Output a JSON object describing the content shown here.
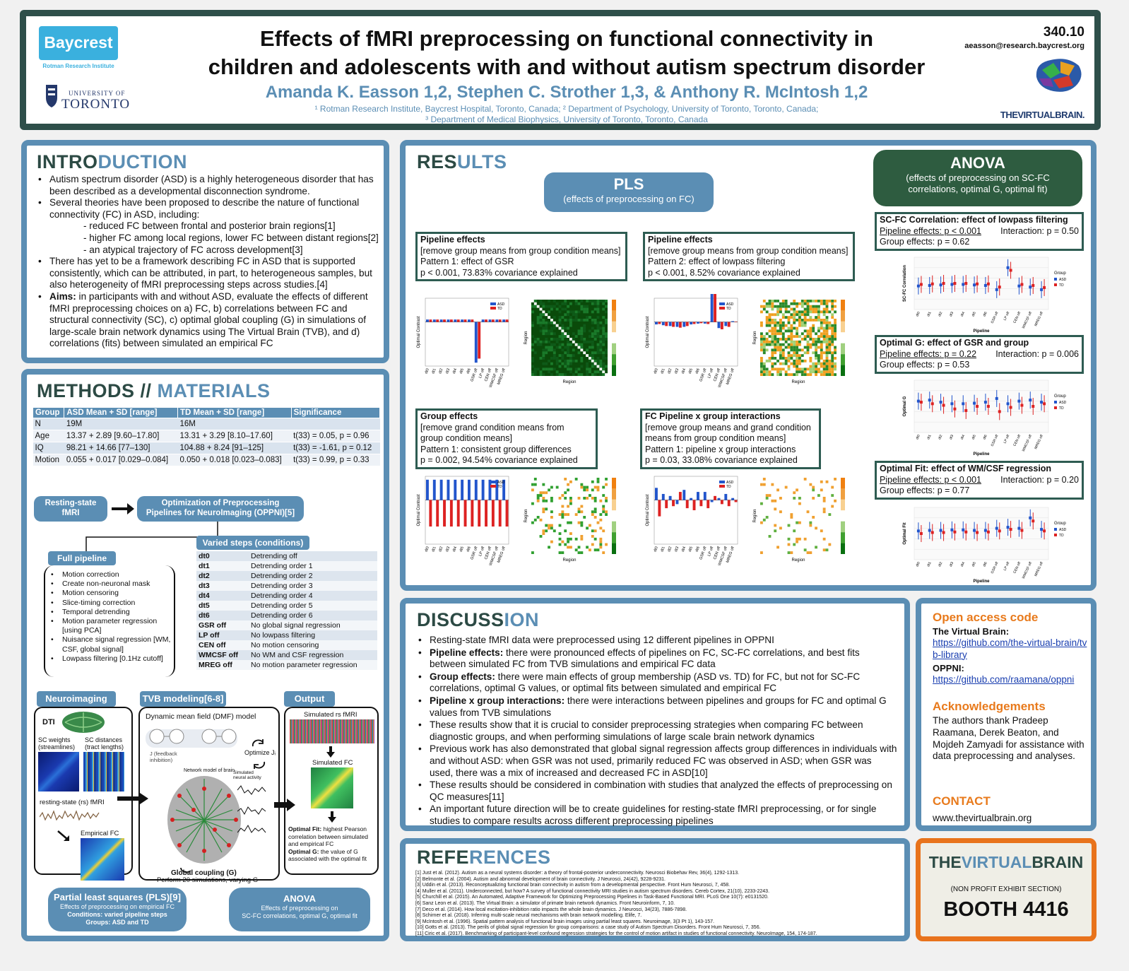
{
  "header": {
    "title_line1": "Effects of fMRI preprocessing on functional connectivity in",
    "title_line2": "children and adolescents with and without autism spectrum disorder",
    "authors": "Amanda K. Easson 1,2, Stephen C. Strother 1,3, & Anthony R. McIntosh 1,2",
    "affil1": "¹ Rotman Research Institute, Baycrest Hospital, Toronto, Canada; ² Department of Psychology, University of Toronto, Toronto, Canada;",
    "affil2": "³ Department of Medical Biophysics, University of Toronto, Toronto, Canada",
    "poster_number": "340.10",
    "email": "aeasson@research.baycrest.org",
    "baycrest": "Baycrest",
    "rotman": "Rotman Research Institute",
    "uoft_top": "UNIVERSITY OF",
    "uoft_bottom": "TORONTO",
    "tvb": "THEVIRTUALBRAIN."
  },
  "intro": {
    "h_a": "INTRO",
    "h_b": "DUCTION",
    "p1": "Autism spectrum disorder (ASD) is a highly heterogeneous disorder that has been described as a developmental disconnection syndrome.",
    "p2": "Several theories have been proposed to describe the nature of functional connectivity (FC) in ASD, including:",
    "s1": "- reduced FC between frontal and posterior brain regions[1]",
    "s2": "- higher FC among local regions, lower FC between distant regions[2]",
    "s3": "- an atypical trajectory of FC across development[3]",
    "p3": "There has yet to be a framework describing FC in ASD that is supported consistently, which can be attributed, in part, to heterogeneous samples, but also heterogeneity of fMRI preprocessing steps across studies.[4]",
    "aims_label": "Aims:",
    "aims": " in participants with and without ASD, evaluate the effects of different fMRI preprocessing choices on a) FC, b) correlations between FC and structural connectivity (SC), c) optimal global coupling (G) in simulations of large-scale brain network dynamics using The Virtual Brain (TVB), and d) correlations (fits) between simulated an empirical FC"
  },
  "methods": {
    "h_a": "METHODS //",
    "h_b": " MATERIALS",
    "table_head": [
      "Group",
      "ASD Mean + SD [range]",
      "TD Mean + SD [range]",
      "Significance"
    ],
    "rows": [
      [
        "N",
        "19M",
        "16M",
        ""
      ],
      [
        "Age",
        "13.37 + 2.89 [9.60–17.80]",
        "13.31 + 3.29 [8.10–17.60]",
        "t(33) = 0.05, p = 0.96"
      ],
      [
        "IQ",
        "98.21 + 14.66 [77–130]",
        "104.88 + 8.24 [91–125]",
        "t(33) = -1.61, p = 0.12"
      ],
      [
        "Motion",
        "0.055 + 0.017 [0.029–0.084]",
        "0.050 + 0.018 [0.023–0.083]",
        "t(33) = 0.99, p = 0.33"
      ]
    ],
    "rs_fmri": "Resting-state fMRI",
    "oppni": "Optimization of Preprocessing Pipelines for NeuroImaging (OPPNI)[5]",
    "full_pipeline": "Full pipeline",
    "pipeline_steps": [
      "Motion correction",
      "Create non-neuronal mask",
      "Motion censoring",
      "Slice-timing correction",
      "Temporal detrending",
      "Motion parameter regression [using PCA]",
      "Nuisance signal regression [WM, CSF, global signal]",
      "Lowpass filtering [0.1Hz cutoff]"
    ],
    "varied_steps": "Varied steps (conditions)",
    "steps": [
      [
        "dt0",
        "Detrending off"
      ],
      [
        "dt1",
        "Detrending order 1"
      ],
      [
        "dt2",
        "Detrending order 2"
      ],
      [
        "dt3",
        "Detrending order 3"
      ],
      [
        "dt4",
        "Detrending order 4"
      ],
      [
        "dt5",
        "Detrending order 5"
      ],
      [
        "dt6",
        "Detrending order 6"
      ],
      [
        "GSR off",
        "No global signal regression"
      ],
      [
        "LP off",
        "No lowpass filtering"
      ],
      [
        "CEN off",
        "No motion censoring"
      ],
      [
        "WMCSF off",
        "No WM and CSF regression"
      ],
      [
        "MREG off",
        "No motion parameter regression"
      ]
    ],
    "neuroimaging": "Neuroimaging",
    "tvb_modeling": "TVB modeling[6-8]",
    "output": "Output",
    "dti": "DTI",
    "sc_weights": "SC weights (streamlines)",
    "sc_dist": "SC distances (tract lengths)",
    "rs_label": "resting-state (rs) fMRI",
    "emp_fc": "Empirical FC",
    "dmf": "Dynamic mean field (DMF) model",
    "jfb": "J (feedback inhibition)",
    "opt_j": "Optimize Jᵢ",
    "net_model": "Network model of brain",
    "sim_activity": "Simulated neural activity",
    "global_coupling": "Global coupling (G)",
    "perform20": "Perform 20 simulations, varying G",
    "sim_rs": "Simulated rs fMRI",
    "sim_fc": "Simulated FC",
    "optfit_label": "Optimal Fit:",
    "optfit": " highest Pearson correlation between simulated and empirical FC",
    "optg_label": "Optimal G:",
    "optg": " the value of G associated with the optimal fit",
    "pls_title": "Partial least squares (PLS)[9]",
    "pls_l1": "Effects of preprocessing on empirical FC",
    "pls_l2": "Conditions: varied pipeline steps",
    "pls_l3": "Groups: ASD and TD",
    "anova_title": "ANOVA",
    "anova_l1": "Effects of preprocessing on",
    "anova_l2": "SC-FC correlations, optimal G, optimal fit"
  },
  "results": {
    "h_a": "RES",
    "h_b": "ULTS",
    "pls_title": "PLS",
    "pls_sub": "(effects of preprocessing on FC)",
    "anova_title": "ANOVA",
    "anova_sub": "(effects of preprocessing on SC-FC correlations, optimal G, optimal fit)",
    "box1": [
      "Pipeline effects",
      "[remove group means from group condition means]",
      "Pattern 1: effect of GSR",
      "p < 0.001, 73.83% covariance explained"
    ],
    "box2": [
      "Pipeline effects",
      "[remove group means from group condition means]",
      "Pattern 2: effect of lowpass filtering",
      "p < 0.001, 8.52% covariance explained"
    ],
    "box3": [
      "Group effects",
      "[remove grand condition means from",
      "group condition means]",
      "Pattern 1: consistent group differences",
      "p = 0.002, 94.54% covariance explained"
    ],
    "box4": [
      "FC Pipeline x group interactions",
      "[remove group means and grand condition",
      "means from group condition means]",
      "Pattern 1: pipeline x group interactions",
      "p = 0.03, 33.08% covariance explained"
    ],
    "a1": [
      "SC-FC Correlation: effect of lowpass filtering",
      "Pipeline effects: p < 0.001",
      "Interaction: p = 0.50",
      "Group effects: p = 0.62"
    ],
    "a2": [
      "Optimal G: effect of GSR and group",
      "Pipeline effects: p = 0.22",
      "Interaction: p = 0.006",
      "Group effects: p = 0.53"
    ],
    "a3": [
      "Optimal Fit: effect of WM/CSF regression",
      "Pipeline effects: p < 0.001",
      "Interaction: p = 0.20",
      "Group effects: p = 0.77"
    ],
    "conditions": [
      "dt0",
      "dt1",
      "dt2",
      "dt3",
      "dt4",
      "dt5",
      "dt6",
      "GSR off",
      "LP off",
      "CEN off",
      "WMCSF off",
      "MREG off"
    ],
    "ylabel_pls": "Optimal Contrast",
    "region": "Region",
    "legend_asd": "ASD",
    "legend_td": "TD",
    "legend_group": "Group",
    "ylabel_a1": "SC-FC Correlation",
    "ylabel_a2": "Optimal G",
    "ylabel_a3": "Optimal Fit",
    "xlabel_a": "Pipeline",
    "colors": {
      "asd": "#2255cc",
      "td": "#dd2222"
    }
  },
  "discussion": {
    "h_a": "DISCUSS",
    "h_b": "ION",
    "items": [
      [
        "",
        "Resting-state fMRI data were preprocessed using 12 different pipelines in OPPNI"
      ],
      [
        "Pipeline effects:",
        " there were pronounced effects of pipelines on FC, SC-FC correlations, and best fits between simulated FC from TVB simulations and empirical FC data"
      ],
      [
        "Group effects:",
        " there were main effects of group membership (ASD vs. TD) for FC, but not for SC-FC correlations, optimal G values, or optimal fits between simulated and empirical FC"
      ],
      [
        "Pipeline x group interactions:",
        " there were interactions between pipelines and groups for FC and optimal G values from TVB simulations"
      ],
      [
        "",
        "These results show that it is crucial to consider preprocessing strategies when comparing FC between diagnostic groups, and when performing simulations of large scale brain network dynamics"
      ],
      [
        "",
        "Previous work has also demonstrated that global signal regression affects group differences in individuals with and without ASD: when GSR was not used, primarily reduced FC was observed in ASD; when GSR was used, there was a mix of increased and decreased FC in ASD[10]"
      ],
      [
        "",
        "These results should be considered in combination with studies that analyzed the effects of preprocessing on QC measures[11]"
      ],
      [
        "",
        "An important future direction will be to create guidelines for resting-state fMRI preprocessing, or for single studies to compare results across different preprocessing pipelines"
      ]
    ]
  },
  "side": {
    "open_code": "Open access code",
    "tvb_label": "The Virtual Brain:",
    "tvb_link": "https://github.com/the-virtual-brain/tvb-library",
    "oppni_label": "OPPNI:",
    "oppni_link": "https://github.com/raamana/oppni",
    "ack_title": "Acknowledgements",
    "ack": "The authors thank Pradeep Raamana, Derek Beaton, and Mojdeh Zamyadi for assistance with data preprocessing and analyses.",
    "contact_title": "CONTACT",
    "contact": "www.thevirtualbrain.org"
  },
  "booth": {
    "logo_a": "THE",
    "logo_b": "VIRTUAL",
    "logo_c": "BRAIN",
    "exhibit": "(NON PROFIT EXHIBIT SECTION)",
    "booth": "BOOTH 4416"
  },
  "references": {
    "h_a": "REFE",
    "h_b": "RENCES",
    "items": [
      "[1] Just et al. (2012). Autism as a neural systems disorder: a theory of frontal-posterior underconnectivity. Neurosci Biobehav Rev, 36(4), 1292-1313.",
      "[2] Belmonte et al. (2004). Autism and abnormal development of brain connectivity. J Neurosci, 24(42), 9228-9231.",
      "[3] Uddin et al. (2013). Reconceptualizing functional brain connectivity in autism from a developmental perspective. Front Hum Neurosci, 7, 458.",
      "[4] Muller et al. (2011). Underconnected, but how? A survey of functional connectivity MRI studies in autism spectrum disorders. Cereb Cortex, 21(10), 2233-2243.",
      "[5] Churchill et al. (2015). An Automated, Adaptive Framework for Optimizing Preprocessing Pipelines in Task-Based Functional MRI. PLoS One 10(7): e0131520.",
      "[6] Sanz Leon et al. (2013). The Virtual Brain: a simulator of primate brain network dynamics. Front Neuroinform, 7, 10.",
      "[7] Deco et al. (2014). How local excitation-inhibition ratio impacts the whole brain dynamics. J Neurosci, 34(23), 7886-7898.",
      "[8] Schirner et al. (2018). Inferring multi-scale neural mechanisms with brain network modelling. Elife, 7.",
      "[9] McIntosh et al. (1996). Spatial pattern analysis of functional brain images using partial least squares. Neuroimage, 3(3 Pt 1), 143-157.",
      "[10] Gotts et al. (2013). The perils of global signal regression for group comparisons: a case study of Autism Spectrum Disorders. Front Hum Neurosci, 7, 356.",
      "[11] Ciric et al. (2017). Benchmarking of participant-level confound regression strategies for the control of motion artifact in studies of functional connectivity. NeuroImage, 154, 174-187."
    ]
  }
}
